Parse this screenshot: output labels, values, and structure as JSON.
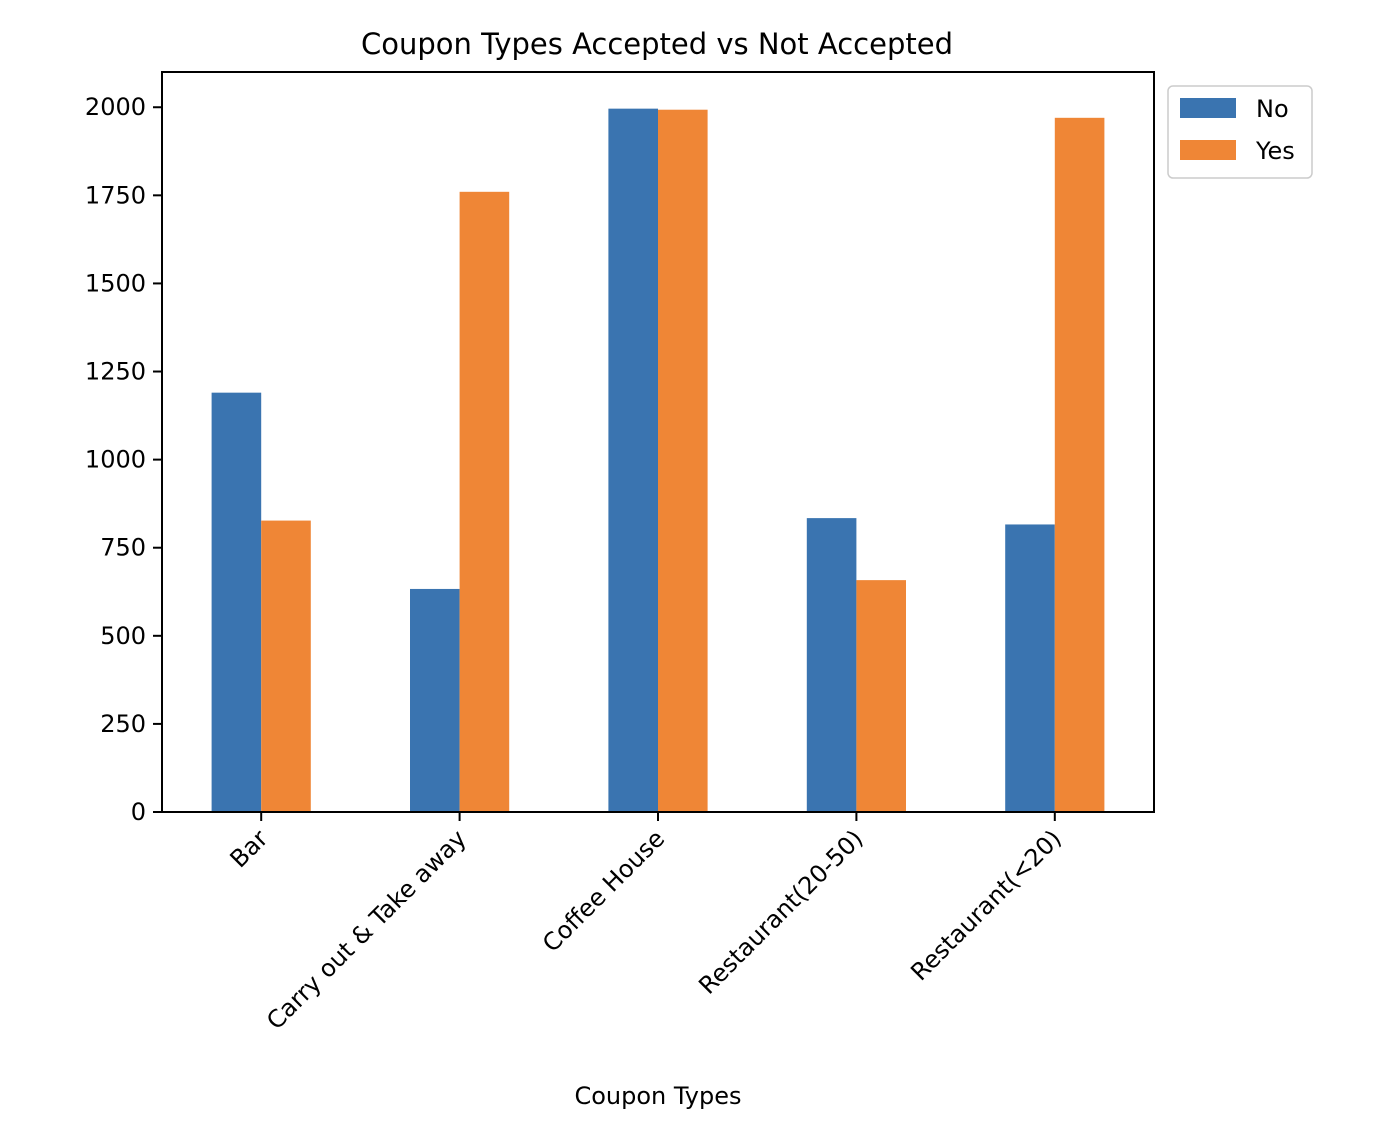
{
  "chart_data": {
    "type": "bar",
    "title": "Coupon Types Accepted vs Not Accepted",
    "xlabel": "Coupon Types",
    "ylabel": "",
    "categories": [
      "Bar",
      "Carry out & Take away",
      "Coffee House",
      "Restaurant(20-50)",
      "Restaurant(<20)"
    ],
    "series": [
      {
        "name": "No",
        "color": "#3a74b0",
        "values": [
          1190,
          633,
          1996,
          834,
          816
        ]
      },
      {
        "name": "Yes",
        "color": "#ef8636",
        "values": [
          827,
          1760,
          1993,
          658,
          1970
        ]
      }
    ],
    "ylim": [
      0,
      2100
    ],
    "yticks": [
      0,
      250,
      500,
      750,
      1000,
      1250,
      1500,
      1750,
      2000
    ],
    "grid": false,
    "legend_position": "outside-top-right"
  }
}
